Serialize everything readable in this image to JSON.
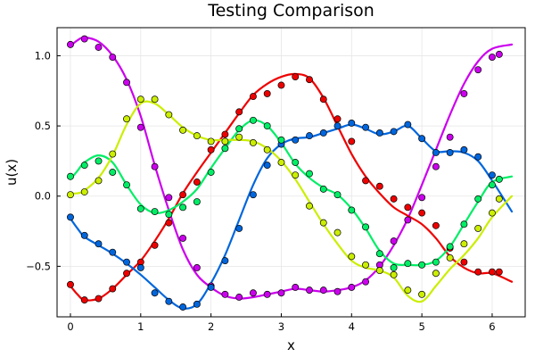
{
  "chart_data": {
    "type": "line",
    "title": "Testing Comparison",
    "xlabel": "x",
    "ylabel": "u(x)",
    "xlim": [
      -0.19,
      6.47
    ],
    "ylim": [
      -0.86,
      1.2
    ],
    "xticks": [
      0,
      1,
      2,
      3,
      4,
      5,
      6
    ],
    "xtick_labels": [
      "0",
      "1",
      "2",
      "3",
      "4",
      "5",
      "6"
    ],
    "yticks": [
      -0.5,
      0.0,
      0.5,
      1.0
    ],
    "ytick_labels": [
      "−0.5",
      "0.0",
      "0.5",
      "1.0"
    ],
    "grid": true,
    "legend": "none",
    "series": [
      {
        "name": "magenta",
        "color": "#cc00ee",
        "line": {
          "x": [
            0.0,
            0.1,
            0.2,
            0.4,
            0.6,
            0.8,
            1.0,
            1.2,
            1.4,
            1.6,
            1.8,
            2.0,
            2.2,
            2.4,
            2.6,
            2.8,
            3.0,
            3.2,
            3.4,
            3.6,
            3.8,
            4.0,
            4.2,
            4.4,
            4.6,
            4.8,
            5.0,
            5.2,
            5.4,
            5.6,
            5.8,
            6.0,
            6.28
          ],
          "y": [
            1.07,
            1.11,
            1.13,
            1.1,
            1.0,
            0.83,
            0.57,
            0.22,
            -0.1,
            -0.38,
            -0.56,
            -0.65,
            -0.71,
            -0.73,
            -0.72,
            -0.7,
            -0.68,
            -0.66,
            -0.67,
            -0.68,
            -0.67,
            -0.65,
            -0.6,
            -0.5,
            -0.35,
            -0.16,
            0.08,
            0.33,
            0.58,
            0.8,
            0.96,
            1.05,
            1.08
          ]
        },
        "points": {
          "x": [
            0.0,
            0.2,
            0.4,
            0.6,
            0.8,
            1.0,
            1.2,
            1.4,
            1.6,
            1.8,
            2.0,
            2.2,
            2.4,
            2.6,
            2.8,
            3.0,
            3.2,
            3.4,
            3.6,
            3.8,
            4.0,
            4.2,
            4.4,
            4.6,
            4.8,
            5.0,
            5.2,
            5.4,
            5.6,
            5.8,
            6.0,
            6.1
          ],
          "y": [
            1.08,
            1.12,
            1.06,
            0.99,
            0.81,
            0.49,
            0.21,
            -0.01,
            -0.3,
            -0.51,
            -0.64,
            -0.7,
            -0.72,
            -0.69,
            -0.7,
            -0.69,
            -0.65,
            -0.67,
            -0.67,
            -0.68,
            -0.65,
            -0.61,
            -0.49,
            -0.32,
            -0.17,
            -0.01,
            0.21,
            0.42,
            0.73,
            0.9,
            0.99,
            1.01
          ]
        }
      },
      {
        "name": "red",
        "color": "#ee0000",
        "line": {
          "x": [
            0.0,
            0.1,
            0.2,
            0.4,
            0.6,
            0.8,
            1.0,
            1.2,
            1.4,
            1.6,
            1.8,
            2.0,
            2.2,
            2.4,
            2.6,
            2.8,
            3.0,
            3.2,
            3.4,
            3.6,
            3.8,
            4.0,
            4.2,
            4.4,
            4.6,
            4.8,
            5.0,
            5.2,
            5.4,
            5.6,
            5.8,
            6.0,
            6.28
          ],
          "y": [
            -0.64,
            -0.7,
            -0.74,
            -0.73,
            -0.66,
            -0.56,
            -0.46,
            -0.32,
            -0.16,
            0.02,
            0.17,
            0.31,
            0.45,
            0.59,
            0.72,
            0.8,
            0.85,
            0.87,
            0.84,
            0.7,
            0.5,
            0.3,
            0.14,
            0.02,
            -0.08,
            -0.14,
            -0.2,
            -0.3,
            -0.43,
            -0.51,
            -0.55,
            -0.55,
            -0.61
          ]
        },
        "points": {
          "x": [
            0.0,
            0.2,
            0.4,
            0.6,
            0.8,
            1.0,
            1.2,
            1.4,
            1.6,
            1.8,
            2.0,
            2.2,
            2.4,
            2.6,
            2.8,
            3.0,
            3.2,
            3.4,
            3.6,
            3.8,
            4.0,
            4.2,
            4.4,
            4.6,
            4.8,
            5.0,
            5.2,
            5.4,
            5.6,
            5.8,
            6.0,
            6.1
          ],
          "y": [
            -0.63,
            -0.74,
            -0.73,
            -0.66,
            -0.55,
            -0.47,
            -0.35,
            -0.19,
            0.01,
            0.1,
            0.33,
            0.44,
            0.6,
            0.71,
            0.73,
            0.79,
            0.85,
            0.83,
            0.69,
            0.55,
            0.39,
            0.11,
            0.07,
            -0.02,
            -0.08,
            -0.12,
            -0.21,
            -0.37,
            -0.47,
            -0.54,
            -0.54,
            -0.54
          ]
        }
      },
      {
        "name": "blue",
        "color": "#0066dd",
        "line": {
          "x": [
            0.0,
            0.1,
            0.2,
            0.4,
            0.6,
            0.8,
            1.0,
            1.2,
            1.4,
            1.6,
            1.8,
            2.0,
            2.2,
            2.4,
            2.6,
            2.8,
            3.0,
            3.2,
            3.4,
            3.6,
            3.8,
            4.0,
            4.2,
            4.4,
            4.6,
            4.8,
            5.0,
            5.2,
            5.4,
            5.6,
            5.8,
            6.0,
            6.28
          ],
          "y": [
            -0.16,
            -0.23,
            -0.29,
            -0.35,
            -0.41,
            -0.48,
            -0.56,
            -0.65,
            -0.74,
            -0.8,
            -0.77,
            -0.62,
            -0.42,
            -0.17,
            0.08,
            0.27,
            0.37,
            0.41,
            0.42,
            0.45,
            0.48,
            0.51,
            0.48,
            0.44,
            0.46,
            0.5,
            0.41,
            0.32,
            0.32,
            0.31,
            0.25,
            0.11,
            -0.11
          ]
        },
        "points": {
          "x": [
            0.0,
            0.2,
            0.4,
            0.6,
            0.8,
            1.0,
            1.2,
            1.4,
            1.6,
            1.8,
            2.0,
            2.2,
            2.4,
            2.6,
            2.8,
            3.0,
            3.2,
            3.4,
            3.6,
            3.8,
            4.0,
            4.2,
            4.4,
            4.6,
            4.8,
            5.0,
            5.2,
            5.4,
            5.6,
            5.8,
            6.0
          ],
          "y": [
            -0.15,
            -0.28,
            -0.34,
            -0.4,
            -0.47,
            -0.51,
            -0.69,
            -0.75,
            -0.79,
            -0.77,
            -0.65,
            -0.46,
            -0.23,
            0.01,
            0.22,
            0.37,
            0.4,
            0.43,
            0.45,
            0.5,
            0.52,
            0.49,
            0.45,
            0.46,
            0.51,
            0.41,
            0.31,
            0.31,
            0.33,
            0.28,
            0.15
          ]
        }
      },
      {
        "name": "green",
        "color": "#00ee66",
        "line": {
          "x": [
            0.0,
            0.1,
            0.2,
            0.4,
            0.6,
            0.8,
            1.0,
            1.2,
            1.4,
            1.6,
            1.8,
            2.0,
            2.2,
            2.4,
            2.6,
            2.8,
            3.0,
            3.2,
            3.4,
            3.6,
            3.8,
            4.0,
            4.2,
            4.4,
            4.6,
            4.8,
            5.0,
            5.2,
            5.4,
            5.6,
            5.8,
            6.0,
            6.28
          ],
          "y": [
            0.12,
            0.18,
            0.24,
            0.29,
            0.24,
            0.08,
            -0.06,
            -0.12,
            -0.1,
            -0.04,
            0.05,
            0.2,
            0.34,
            0.47,
            0.54,
            0.5,
            0.38,
            0.23,
            0.13,
            0.06,
            0.01,
            -0.09,
            -0.23,
            -0.39,
            -0.48,
            -0.49,
            -0.49,
            -0.46,
            -0.36,
            -0.2,
            -0.04,
            0.1,
            0.14
          ]
        },
        "points": {
          "x": [
            0.0,
            0.2,
            0.4,
            0.6,
            0.8,
            1.0,
            1.2,
            1.4,
            1.6,
            1.8,
            2.0,
            2.2,
            2.4,
            2.6,
            2.8,
            3.0,
            3.2,
            3.4,
            3.6,
            3.8,
            4.0,
            4.2,
            4.4,
            4.6,
            4.8,
            5.0,
            5.2,
            5.4,
            5.6,
            5.8,
            6.0,
            6.1
          ],
          "y": [
            0.14,
            0.22,
            0.25,
            0.17,
            0.08,
            -0.09,
            -0.11,
            -0.13,
            -0.08,
            -0.04,
            0.17,
            0.34,
            0.48,
            0.54,
            0.5,
            0.4,
            0.24,
            0.16,
            0.05,
            0.01,
            -0.1,
            -0.22,
            -0.41,
            -0.51,
            -0.48,
            -0.49,
            -0.47,
            -0.36,
            -0.2,
            -0.02,
            0.08,
            0.12
          ]
        }
      },
      {
        "name": "yellow-green",
        "color": "#ccee00",
        "line": {
          "x": [
            0.0,
            0.1,
            0.2,
            0.4,
            0.6,
            0.8,
            1.0,
            1.2,
            1.4,
            1.6,
            1.8,
            2.0,
            2.2,
            2.4,
            2.6,
            2.8,
            3.0,
            3.2,
            3.4,
            3.6,
            3.8,
            4.0,
            4.2,
            4.4,
            4.6,
            4.8,
            5.0,
            5.2,
            5.4,
            5.6,
            5.8,
            6.0,
            6.28
          ],
          "y": [
            0.02,
            0.02,
            0.04,
            0.13,
            0.29,
            0.51,
            0.66,
            0.66,
            0.58,
            0.49,
            0.43,
            0.4,
            0.4,
            0.4,
            0.39,
            0.34,
            0.25,
            0.12,
            -0.04,
            -0.2,
            -0.34,
            -0.46,
            -0.51,
            -0.53,
            -0.58,
            -0.71,
            -0.75,
            -0.64,
            -0.52,
            -0.42,
            -0.3,
            -0.15,
            0.0
          ]
        },
        "points": {
          "x": [
            0.0,
            0.2,
            0.4,
            0.6,
            0.8,
            1.0,
            1.2,
            1.4,
            1.6,
            1.8,
            2.0,
            2.2,
            2.4,
            2.6,
            2.8,
            3.0,
            3.2,
            3.4,
            3.6,
            3.8,
            4.0,
            4.2,
            4.4,
            4.6,
            4.8,
            5.0,
            5.2,
            5.4,
            5.6,
            5.8,
            6.0,
            6.1
          ],
          "y": [
            0.01,
            0.03,
            0.11,
            0.3,
            0.55,
            0.69,
            0.69,
            0.58,
            0.47,
            0.43,
            0.39,
            0.39,
            0.42,
            0.38,
            0.33,
            0.24,
            0.15,
            -0.07,
            -0.19,
            -0.26,
            -0.43,
            -0.49,
            -0.53,
            -0.56,
            -0.67,
            -0.7,
            -0.55,
            -0.44,
            -0.34,
            -0.23,
            -0.12,
            -0.02
          ]
        }
      }
    ]
  }
}
